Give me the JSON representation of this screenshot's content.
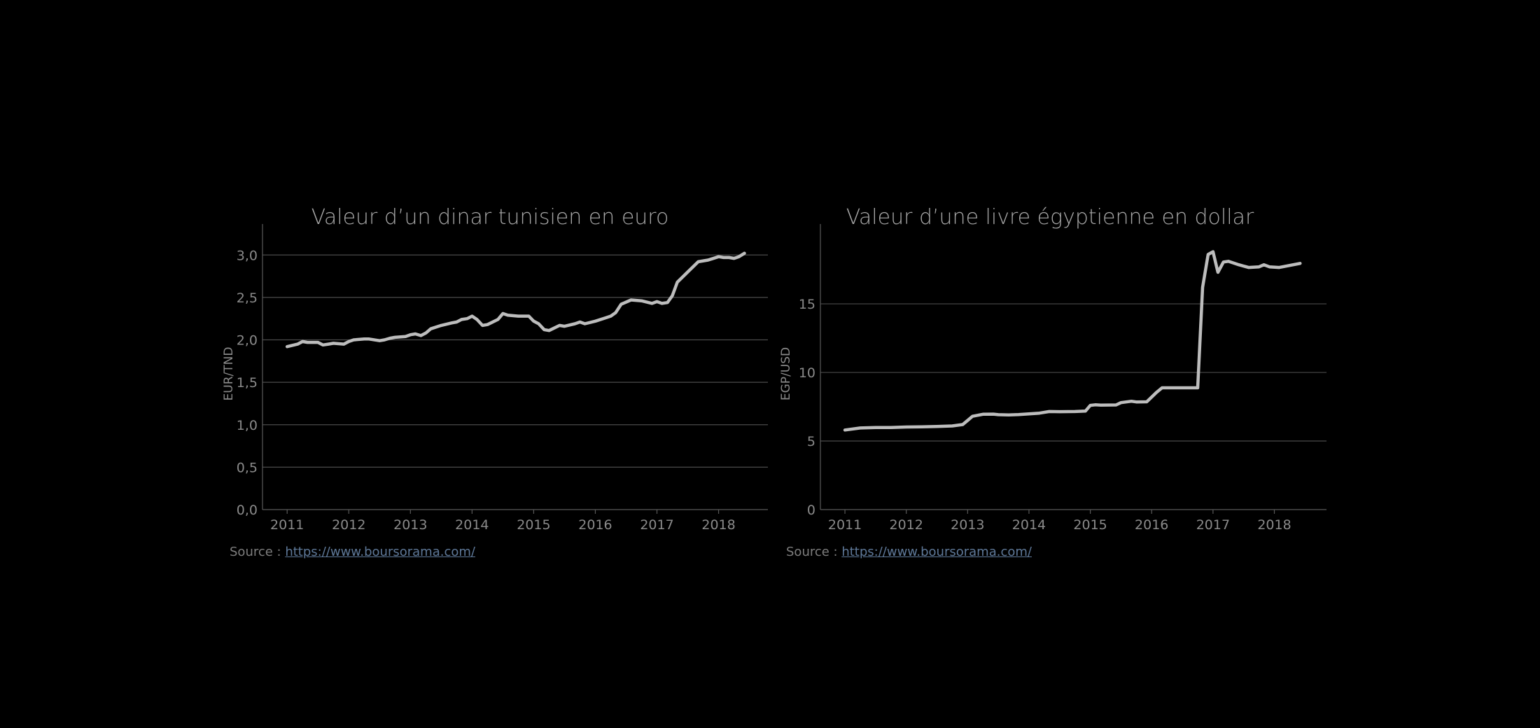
{
  "chart_data": [
    {
      "type": "line",
      "title": "Valeur d’un dinar tunisien en euro",
      "xlabel": "",
      "ylabel": "EUR/TND",
      "xlim": [
        2010.6,
        2018.8
      ],
      "ylim": [
        0,
        3.2
      ],
      "x_ticks": [
        2011,
        2012,
        2013,
        2014,
        2015,
        2016,
        2017,
        2018
      ],
      "x_tick_labels": [
        "2011",
        "2012",
        "2013",
        "2014",
        "2015",
        "2016",
        "2017",
        "2018"
      ],
      "y_ticks": [
        0,
        0.5,
        1,
        1.5,
        2,
        2.5,
        3
      ],
      "y_tick_labels": [
        "0,0",
        "0,5",
        "1,0",
        "1,5",
        "2,0",
        "2,5",
        "3,0"
      ],
      "grid": true,
      "line_color": "#bdbdbd",
      "series": [
        {
          "x": [
            2011.0,
            2011.17,
            2011.25,
            2011.33,
            2011.5,
            2011.58,
            2011.67,
            2011.75,
            2011.92,
            2012.0,
            2012.08,
            2012.25,
            2012.33,
            2012.5,
            2012.58,
            2012.67,
            2012.75,
            2012.92,
            2013.0,
            2013.08,
            2013.17,
            2013.25,
            2013.33,
            2013.5,
            2013.67,
            2013.75,
            2013.83,
            2013.92,
            2014.0,
            2014.08,
            2014.17,
            2014.25,
            2014.42,
            2014.5,
            2014.58,
            2014.75,
            2014.92,
            2015.0,
            2015.08,
            2015.17,
            2015.25,
            2015.42,
            2015.5,
            2015.67,
            2015.75,
            2015.83,
            2016.0,
            2016.17,
            2016.25,
            2016.33,
            2016.42,
            2016.58,
            2016.75,
            2016.92,
            2017.0,
            2017.08,
            2017.17,
            2017.25,
            2017.33,
            2017.5,
            2017.67,
            2017.83,
            2018.0,
            2018.08,
            2018.17,
            2018.25,
            2018.33,
            2018.42
          ],
          "y": [
            1.92,
            1.95,
            1.98,
            1.97,
            1.97,
            1.94,
            1.95,
            1.96,
            1.95,
            1.98,
            2.0,
            2.01,
            2.01,
            1.99,
            2.0,
            2.02,
            2.03,
            2.04,
            2.06,
            2.07,
            2.05,
            2.08,
            2.13,
            2.17,
            2.2,
            2.21,
            2.24,
            2.25,
            2.28,
            2.24,
            2.17,
            2.18,
            2.24,
            2.31,
            2.29,
            2.28,
            2.28,
            2.22,
            2.19,
            2.12,
            2.11,
            2.17,
            2.16,
            2.19,
            2.21,
            2.19,
            2.22,
            2.26,
            2.28,
            2.32,
            2.42,
            2.47,
            2.46,
            2.43,
            2.45,
            2.43,
            2.44,
            2.52,
            2.68,
            2.8,
            2.92,
            2.94,
            2.98,
            2.97,
            2.97,
            2.96,
            2.98,
            3.02
          ]
        }
      ],
      "source_prefix": "Source :",
      "source_link": "https://www.boursorama.com/"
    },
    {
      "type": "line",
      "title": "Valeur d’une livre égyptienne en dollar",
      "xlabel": "",
      "ylabel": "EGP/USD",
      "xlim": [
        2010.6,
        2018.85
      ],
      "ylim": [
        0,
        19.8
      ],
      "x_ticks": [
        2011,
        2012,
        2013,
        2014,
        2015,
        2016,
        2017,
        2018
      ],
      "x_tick_labels": [
        "2011",
        "2012",
        "2013",
        "2014",
        "2015",
        "2016",
        "2017",
        "2018"
      ],
      "y_ticks": [
        0,
        5,
        10,
        15
      ],
      "y_tick_labels": [
        "0",
        "5",
        "10",
        "15"
      ],
      "grid": true,
      "line_color": "#bdbdbd",
      "series": [
        {
          "x": [
            2011.0,
            2011.25,
            2011.5,
            2011.75,
            2012.0,
            2012.25,
            2012.5,
            2012.75,
            2012.92,
            2013.0,
            2013.08,
            2013.25,
            2013.42,
            2013.5,
            2013.67,
            2013.83,
            2014.0,
            2014.17,
            2014.33,
            2014.5,
            2014.75,
            2014.92,
            2015.0,
            2015.08,
            2015.17,
            2015.42,
            2015.5,
            2015.67,
            2015.75,
            2015.92,
            2016.08,
            2016.17,
            2016.25,
            2016.5,
            2016.75,
            2016.83,
            2016.92,
            2017.0,
            2017.08,
            2017.17,
            2017.25,
            2017.42,
            2017.58,
            2017.75,
            2017.83,
            2017.92,
            2018.08,
            2018.25,
            2018.42
          ],
          "y": [
            5.8,
            5.95,
            5.98,
            5.98,
            6.02,
            6.03,
            6.06,
            6.1,
            6.2,
            6.5,
            6.8,
            6.95,
            6.96,
            6.92,
            6.9,
            6.93,
            6.98,
            7.03,
            7.15,
            7.14,
            7.15,
            7.18,
            7.6,
            7.64,
            7.62,
            7.63,
            7.8,
            7.9,
            7.85,
            7.86,
            8.55,
            8.88,
            8.88,
            8.88,
            8.88,
            16.2,
            18.6,
            18.8,
            17.3,
            18.05,
            18.1,
            17.85,
            17.65,
            17.7,
            17.85,
            17.7,
            17.65,
            17.8,
            17.95
          ]
        }
      ],
      "source_prefix": "Source :",
      "source_link": "https://www.boursorama.com/"
    }
  ]
}
